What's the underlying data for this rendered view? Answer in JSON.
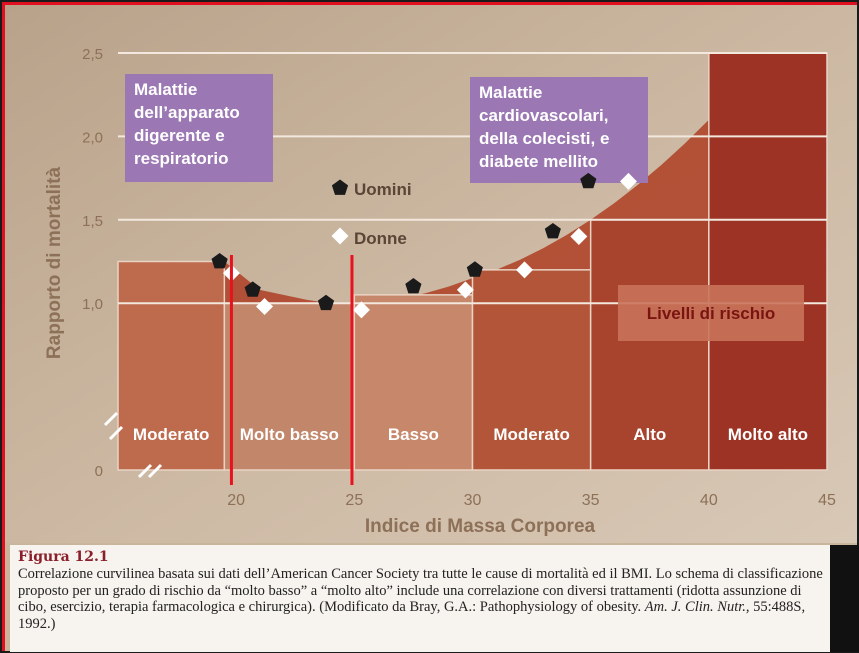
{
  "chart_data": {
    "type": "scatter",
    "xlabel": "Indice di Massa Corporea",
    "ylabel": "Rapporto di mortalità",
    "x_ticks": [
      20,
      25,
      30,
      35,
      40,
      45
    ],
    "y_ticks": [
      "0",
      "1,0",
      "1,5",
      "2,0",
      "2,5"
    ],
    "y_tick_values": [
      0,
      1.0,
      1.5,
      2.0,
      2.5
    ],
    "xlim": [
      15,
      45
    ],
    "ylim": [
      0,
      2.5
    ],
    "grid": true,
    "series": [
      {
        "name": "Uomini",
        "marker": "pentagon",
        "color": "#1a1a1a",
        "x": [
          19.3,
          20.7,
          23.8,
          27.5,
          30.1,
          33.4,
          34.9
        ],
        "y": [
          1.25,
          1.08,
          1.0,
          1.1,
          1.2,
          1.43,
          1.73
        ]
      },
      {
        "name": "Donne",
        "marker": "diamond",
        "color": "#ffffff",
        "x": [
          19.8,
          21.2,
          25.3,
          29.7,
          32.2,
          34.5,
          36.6
        ],
        "y": [
          1.18,
          0.98,
          0.96,
          1.08,
          1.2,
          1.4,
          1.73
        ]
      }
    ],
    "risk_bands": [
      {
        "label": "Moderato",
        "x0": 15,
        "x1": 19.5,
        "level": 1.25
      },
      {
        "label": "Molto basso",
        "x0": 19.5,
        "x1": 25,
        "level": 1.0
      },
      {
        "label": "Basso",
        "x0": 25,
        "x1": 30,
        "level": 1.05
      },
      {
        "label": "Moderato",
        "x0": 30,
        "x1": 35,
        "level": 1.2
      },
      {
        "label": "Alto",
        "x0": 35,
        "x1": 40,
        "level": 1.5
      },
      {
        "label": "Molto alto",
        "x0": 40,
        "x1": 45,
        "level": 2.5
      }
    ],
    "curve": {
      "x": [
        15,
        19.5,
        21,
        23,
        24,
        25,
        26,
        27,
        28,
        29,
        30,
        31,
        32,
        33,
        34,
        35,
        36,
        37,
        38,
        39,
        40,
        41,
        42,
        43,
        44.9
      ],
      "y": [
        1.25,
        1.25,
        1.08,
        1.02,
        1.0,
        1.0,
        1.01,
        1.03,
        1.06,
        1.1,
        1.15,
        1.2,
        1.26,
        1.33,
        1.41,
        1.5,
        1.6,
        1.71,
        1.83,
        1.96,
        2.1,
        2.2,
        2.32,
        2.42,
        2.5
      ]
    },
    "annotations": {
      "box_left": [
        "Malattie",
        "dell’apparato",
        "digerente e",
        "respiratorio"
      ],
      "box_right": [
        "Malattie",
        "cardiovascolari,",
        "della colecisti, e",
        "diabete mellito"
      ],
      "risk_label": "Livelli di rischio"
    },
    "vertical_markers": [
      19.8,
      24.9
    ],
    "colors": {
      "background": "#c9b49c",
      "band_fill": "#b9654a",
      "band_dark": "#a0402c",
      "curve_fill": "#b14b31",
      "high_fill": "#9c3324",
      "label_box": "#9b78b4",
      "marker_line": "#e8121e",
      "axis_text": "#8d7058"
    }
  },
  "caption": {
    "heading": "Figura 12.1",
    "text_1": "Correlazione curvilinea basata sui dati dell’American Cancer Society tra tutte le cause di mortalità ed il BMI. Lo schema di classificazione proposto per un grado di rischio da “molto basso” a “molto alto” include una correlazione con diversi trattamenti (ridotta assunzione di cibo, esercizio, terapia farmacologica e chirurgica). (Modificato da Bray, G.A.: Pathophysiology of obesity.",
    "journal": "Am. J. Clin. Nutr.",
    "text_2": ", 55:488S, 1992.)"
  }
}
